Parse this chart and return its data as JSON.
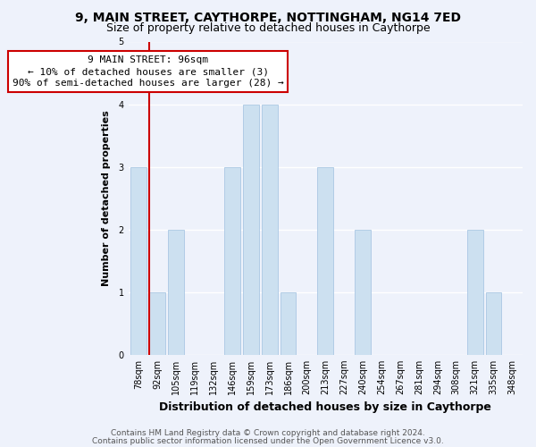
{
  "title": "9, MAIN STREET, CAYTHORPE, NOTTINGHAM, NG14 7ED",
  "subtitle": "Size of property relative to detached houses in Caythorpe",
  "xlabel": "Distribution of detached houses by size in Caythorpe",
  "ylabel": "Number of detached properties",
  "bar_labels": [
    "78sqm",
    "92sqm",
    "105sqm",
    "119sqm",
    "132sqm",
    "146sqm",
    "159sqm",
    "173sqm",
    "186sqm",
    "200sqm",
    "213sqm",
    "227sqm",
    "240sqm",
    "254sqm",
    "267sqm",
    "281sqm",
    "294sqm",
    "308sqm",
    "321sqm",
    "335sqm",
    "348sqm"
  ],
  "bar_values": [
    3,
    1,
    2,
    0,
    0,
    3,
    4,
    4,
    1,
    0,
    3,
    0,
    2,
    0,
    0,
    0,
    0,
    0,
    2,
    1,
    0
  ],
  "bar_color": "#cce0f0",
  "vline_color": "#cc0000",
  "vline_index": 1,
  "annotation_title": "9 MAIN STREET: 96sqm",
  "annotation_line1": "← 10% of detached houses are smaller (3)",
  "annotation_line2": "90% of semi-detached houses are larger (28) →",
  "annotation_box_facecolor": "#ffffff",
  "annotation_box_edgecolor": "#cc0000",
  "ylim": [
    0,
    5
  ],
  "yticks": [
    0,
    1,
    2,
    3,
    4,
    5
  ],
  "footer1": "Contains HM Land Registry data © Crown copyright and database right 2024.",
  "footer2": "Contains public sector information licensed under the Open Government Licence v3.0.",
  "bg_color": "#eef2fb",
  "plot_bg_color": "#eef2fb",
  "grid_color": "#ffffff",
  "title_fontsize": 10,
  "subtitle_fontsize": 9,
  "xlabel_fontsize": 9,
  "ylabel_fontsize": 8,
  "tick_fontsize": 7,
  "annotation_fontsize": 8,
  "footer_fontsize": 6.5
}
